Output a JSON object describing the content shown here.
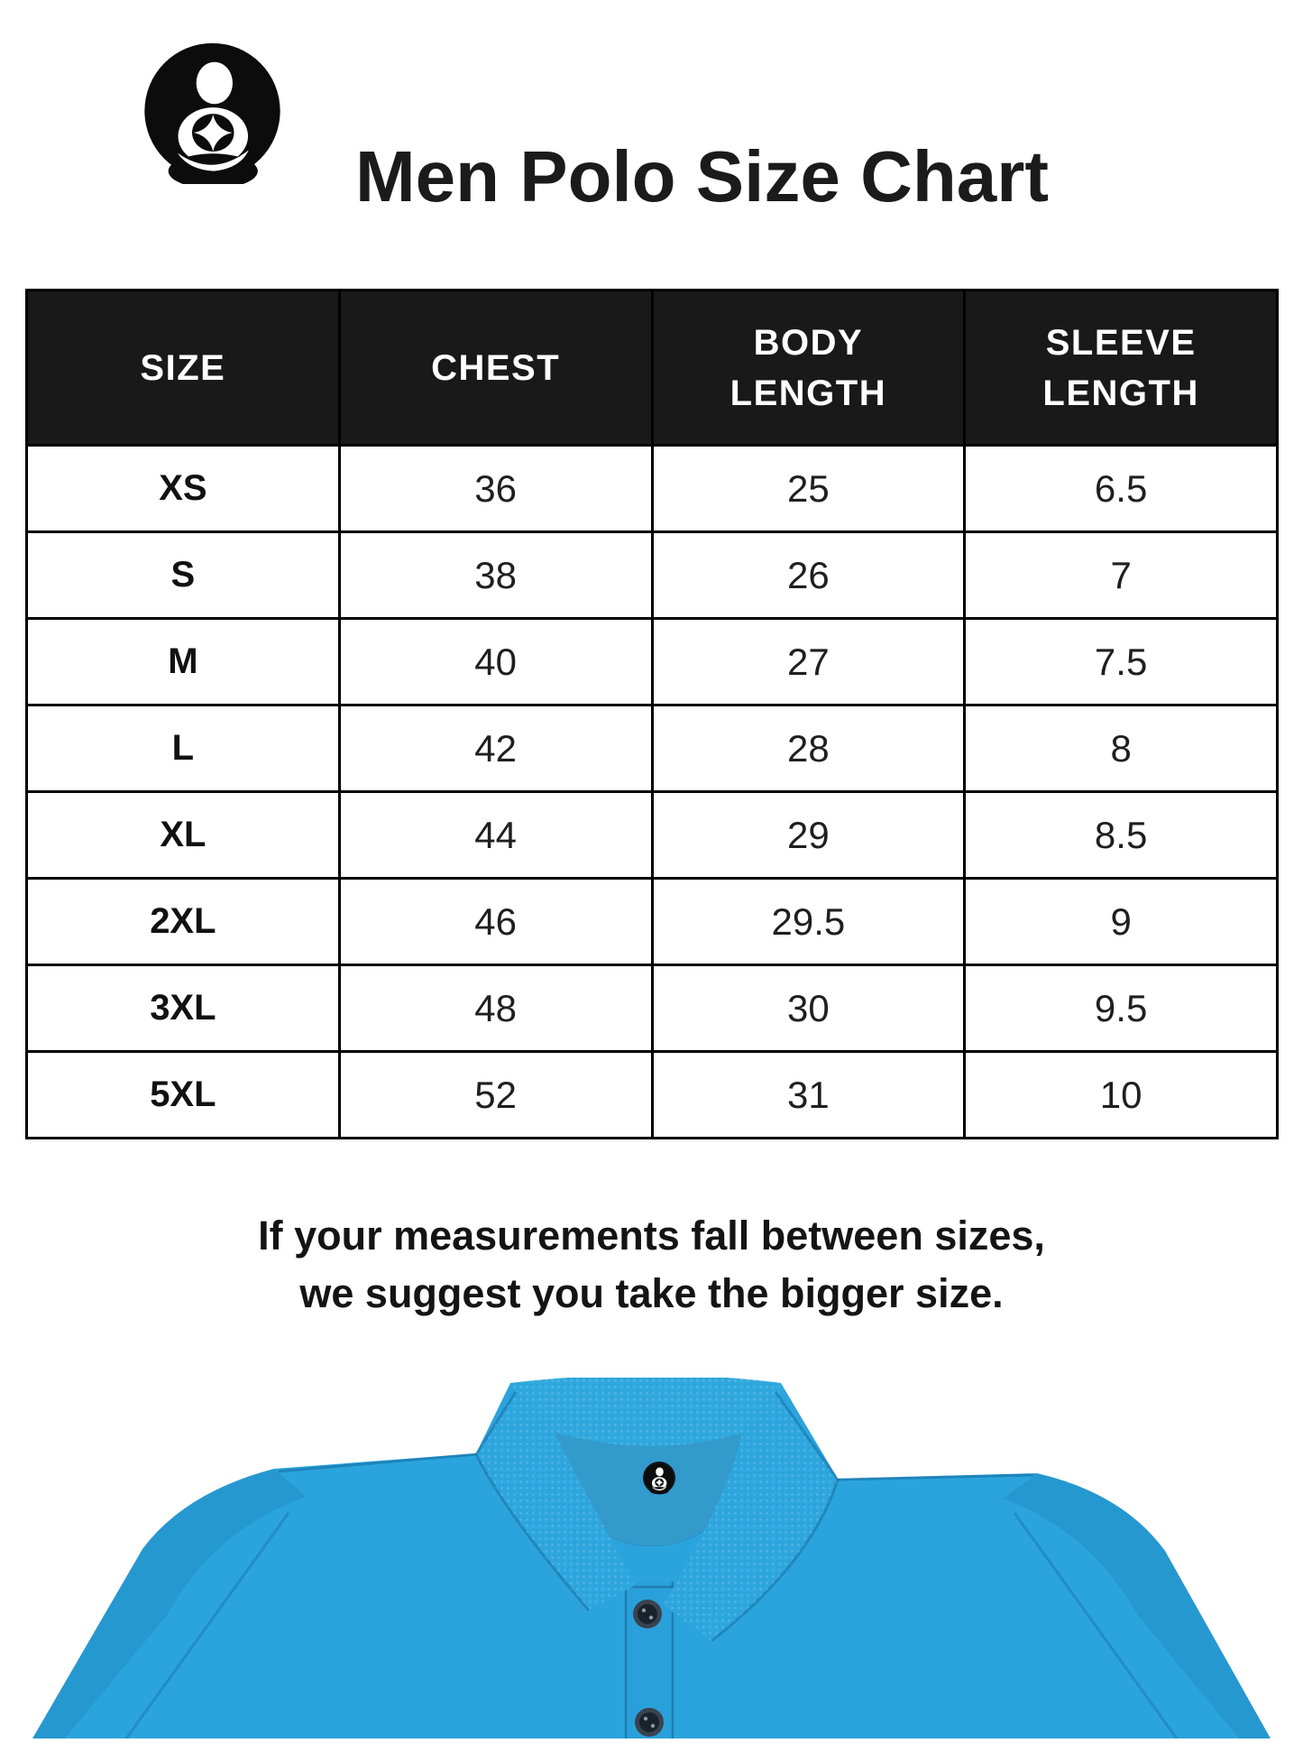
{
  "brand": {
    "logo_icon": "mother-child-star-logo"
  },
  "header": {
    "title": "Men Polo Size Chart"
  },
  "size_table": {
    "columns": [
      "SIZE",
      "CHEST",
      "BODY LENGTH",
      "SLEEVE LENGTH"
    ],
    "rows": [
      {
        "size": "XS",
        "chest": "36",
        "body_length": "25",
        "sleeve_length": "6.5"
      },
      {
        "size": "S",
        "chest": "38",
        "body_length": "26",
        "sleeve_length": "7"
      },
      {
        "size": "M",
        "chest": "40",
        "body_length": "27",
        "sleeve_length": "7.5"
      },
      {
        "size": "L",
        "chest": "42",
        "body_length": "28",
        "sleeve_length": "8"
      },
      {
        "size": "XL",
        "chest": "44",
        "body_length": "29",
        "sleeve_length": "8.5"
      },
      {
        "size": "2XL",
        "chest": "46",
        "body_length": "29.5",
        "sleeve_length": "9"
      },
      {
        "size": "3XL",
        "chest": "48",
        "body_length": "30",
        "sleeve_length": "9.5"
      },
      {
        "size": "5XL",
        "chest": "52",
        "body_length": "31",
        "sleeve_length": "10"
      }
    ]
  },
  "note": {
    "line1": "If your measurements fall between sizes,",
    "line2": "we suggest you take the bigger size."
  },
  "product_photo": {
    "description": "blue polo shirt collar with brand neck label and buttons",
    "shirt_color": "#2ba6e0"
  },
  "colors": {
    "header_bg": "#191919",
    "header_text": "#ffffff",
    "table_border": "#000000",
    "title_text": "#1b1b1b",
    "shirt_blue": "#2ba6e0",
    "shirt_blue_dark": "#1f8cc2",
    "button_dark": "#1a222c"
  },
  "chart_data": {
    "type": "table",
    "title": "Men Polo Size Chart",
    "columns": [
      "SIZE",
      "CHEST",
      "BODY LENGTH",
      "SLEEVE LENGTH"
    ],
    "rows": [
      [
        "XS",
        36,
        25,
        6.5
      ],
      [
        "S",
        38,
        26,
        7
      ],
      [
        "M",
        40,
        27,
        7.5
      ],
      [
        "L",
        42,
        28,
        8
      ],
      [
        "XL",
        44,
        29,
        8.5
      ],
      [
        "2XL",
        46,
        29.5,
        9
      ],
      [
        "3XL",
        48,
        30,
        9.5
      ],
      [
        "5XL",
        52,
        31,
        10
      ]
    ]
  }
}
